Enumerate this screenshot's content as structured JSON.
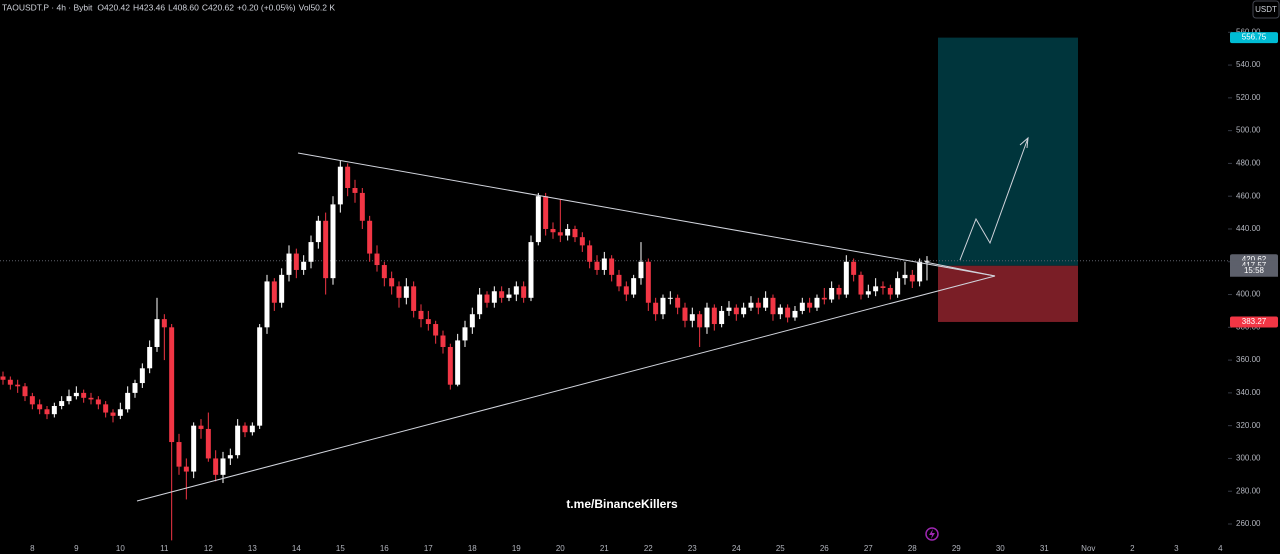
{
  "chart_data": {
    "type": "candlestick",
    "header": [
      "TAOUSDT.P · 4h · Bybit",
      "O420.42",
      "H423.46",
      "L408.60",
      "C420.62",
      "+0.20 (+0.05%)",
      "Vol",
      "50.2 K"
    ],
    "currency": "USDT",
    "watermark": "t.me/BinanceKillers",
    "up_color": "#ffffff",
    "down_color": "#f23645",
    "open": [
      350,
      348,
      345,
      344,
      338,
      333,
      330,
      327,
      332,
      335,
      338,
      340,
      337,
      336,
      333,
      328,
      326,
      330,
      340,
      346,
      355,
      368,
      385,
      380,
      310,
      295,
      292,
      320,
      318,
      300,
      290,
      300,
      302,
      320,
      316,
      320,
      380,
      408,
      395,
      412,
      425,
      415,
      420,
      432,
      445,
      410,
      455,
      478,
      465,
      462,
      445,
      425,
      418,
      410,
      405,
      398,
      405,
      390,
      385,
      382,
      375,
      368,
      345,
      372,
      380,
      388,
      400,
      395,
      402,
      398,
      400,
      405,
      398,
      432,
      460,
      440,
      438,
      436,
      440,
      435,
      430,
      420,
      415,
      422,
      412,
      405,
      400,
      410,
      420,
      395,
      388,
      398,
      398,
      392,
      384,
      388,
      380,
      392,
      382,
      390,
      392,
      388,
      392,
      395,
      392,
      398,
      388,
      392,
      386,
      390,
      395,
      392,
      398,
      397,
      404,
      400,
      420,
      412,
      400,
      402,
      405,
      404,
      400,
      410,
      412,
      408,
      420.42
    ],
    "high": [
      353,
      350,
      348,
      346,
      340,
      336,
      332,
      334,
      338,
      342,
      344,
      342,
      340,
      338,
      335,
      330,
      334,
      344,
      348,
      358,
      372,
      398,
      388,
      382,
      315,
      300,
      322,
      324,
      328,
      305,
      304,
      306,
      324,
      322,
      322,
      382,
      412,
      410,
      416,
      430,
      428,
      424,
      436,
      448,
      450,
      460,
      482,
      480,
      470,
      465,
      448,
      430,
      420,
      414,
      408,
      410,
      408,
      394,
      390,
      384,
      378,
      370,
      376,
      384,
      392,
      404,
      402,
      405,
      405,
      404,
      408,
      408,
      436,
      462,
      462,
      444,
      458,
      443,
      442,
      438,
      433,
      424,
      426,
      424,
      415,
      408,
      412,
      432,
      422,
      398,
      400,
      402,
      400,
      395,
      392,
      390,
      395,
      394,
      393,
      396,
      394,
      395,
      399,
      398,
      402,
      400,
      394,
      394,
      393,
      398,
      398,
      400,
      404,
      408,
      406,
      424,
      422,
      414,
      406,
      410,
      408,
      406,
      414,
      420,
      415,
      422,
      423.46
    ],
    "low": [
      345,
      342,
      340,
      335,
      330,
      327,
      324,
      325,
      330,
      333,
      336,
      334,
      333,
      330,
      325,
      322,
      324,
      328,
      337,
      343,
      352,
      365,
      360,
      250,
      290,
      275,
      288,
      312,
      298,
      286,
      285,
      296,
      300,
      313,
      314,
      318,
      376,
      390,
      392,
      408,
      410,
      412,
      416,
      428,
      400,
      406,
      450,
      460,
      456,
      440,
      420,
      414,
      405,
      400,
      392,
      394,
      386,
      380,
      378,
      370,
      364,
      342,
      344,
      368,
      376,
      385,
      392,
      392,
      395,
      396,
      396,
      395,
      396,
      430,
      436,
      434,
      432,
      433,
      432,
      426,
      416,
      412,
      412,
      408,
      402,
      396,
      398,
      406,
      390,
      384,
      385,
      394,
      388,
      380,
      380,
      368,
      376,
      378,
      380,
      387,
      384,
      386,
      390,
      388,
      390,
      384,
      385,
      383,
      384,
      388,
      389,
      390,
      394,
      395,
      397,
      398,
      408,
      397,
      398,
      399,
      400,
      397,
      398,
      406,
      404,
      405,
      408.6
    ],
    "close": [
      348,
      345,
      344,
      338,
      333,
      330,
      327,
      332,
      335,
      338,
      340,
      337,
      336,
      333,
      328,
      326,
      330,
      340,
      346,
      355,
      368,
      385,
      380,
      310,
      295,
      292,
      320,
      318,
      300,
      290,
      300,
      302,
      320,
      316,
      320,
      380,
      408,
      395,
      412,
      425,
      415,
      420,
      432,
      445,
      410,
      455,
      478,
      465,
      462,
      445,
      425,
      418,
      410,
      405,
      398,
      405,
      390,
      385,
      382,
      375,
      368,
      345,
      372,
      380,
      388,
      400,
      395,
      402,
      398,
      400,
      405,
      398,
      432,
      460,
      440,
      438,
      436,
      440,
      435,
      430,
      420,
      415,
      422,
      412,
      405,
      400,
      410,
      420,
      395,
      388,
      398,
      398,
      392,
      384,
      388,
      380,
      392,
      382,
      390,
      392,
      388,
      392,
      395,
      392,
      398,
      388,
      392,
      386,
      390,
      395,
      392,
      398,
      397,
      404,
      400,
      420,
      412,
      400,
      402,
      405,
      404,
      400,
      410,
      412,
      408,
      420,
      420.62
    ],
    "xlim": [
      -0.41,
      167.05
    ],
    "xticks": [
      {
        "value": 4,
        "label": "8"
      },
      {
        "value": 10,
        "label": "9"
      },
      {
        "value": 16,
        "label": "10"
      },
      {
        "value": 22,
        "label": "11"
      },
      {
        "value": 28,
        "label": "12"
      },
      {
        "value": 34,
        "label": "13"
      },
      {
        "value": 40,
        "label": "14"
      },
      {
        "value": 46,
        "label": "15"
      },
      {
        "value": 52,
        "label": "16"
      },
      {
        "value": 58,
        "label": "17"
      },
      {
        "value": 64,
        "label": "18"
      },
      {
        "value": 70,
        "label": "19"
      },
      {
        "value": 76,
        "label": "20"
      },
      {
        "value": 82,
        "label": "21"
      },
      {
        "value": 88,
        "label": "22"
      },
      {
        "value": 94,
        "label": "23"
      },
      {
        "value": 100,
        "label": "24"
      },
      {
        "value": 106,
        "label": "25"
      },
      {
        "value": 112,
        "label": "26"
      },
      {
        "value": 118,
        "label": "27"
      },
      {
        "value": 124,
        "label": "28"
      },
      {
        "value": 130,
        "label": "29"
      },
      {
        "value": 136,
        "label": "30"
      },
      {
        "value": 142,
        "label": "31"
      },
      {
        "value": 148,
        "label": "Nov"
      },
      {
        "value": 154,
        "label": "2"
      },
      {
        "value": 160,
        "label": "3"
      },
      {
        "value": 166,
        "label": "4"
      }
    ],
    "ylim": [
      241.7,
      579.7
    ],
    "yticks": [
      {
        "value": 260,
        "label": "260.00"
      },
      {
        "value": 280,
        "label": "280.00"
      },
      {
        "value": 300,
        "label": "300.00"
      },
      {
        "value": 320,
        "label": "320.00"
      },
      {
        "value": 340,
        "label": "340.00"
      },
      {
        "value": 360,
        "label": "360.00"
      },
      {
        "value": 380,
        "label": "380.00"
      },
      {
        "value": 400,
        "label": "400.00"
      },
      {
        "value": 420,
        "label": "420.00"
      },
      {
        "value": 440,
        "label": "440.00"
      },
      {
        "value": 460,
        "label": "460.00"
      },
      {
        "value": 480,
        "label": "480.00"
      },
      {
        "value": 500,
        "label": "500.00"
      },
      {
        "value": 520,
        "label": "520.00"
      },
      {
        "value": 540,
        "label": "540.00"
      },
      {
        "value": 560,
        "label": "560.00"
      }
    ],
    "price_tags": [
      {
        "value": 556.75,
        "label": "556.75",
        "color": "#00bcd4"
      },
      {
        "value": 420.62,
        "label": "420.62",
        "color": "#5d606b"
      },
      {
        "value": 417.57,
        "label": "417.57",
        "color": "#5d606b"
      },
      {
        "value": 383.27,
        "label": "383.27",
        "color": "#f23645"
      }
    ],
    "countdown": "15:58"
  }
}
